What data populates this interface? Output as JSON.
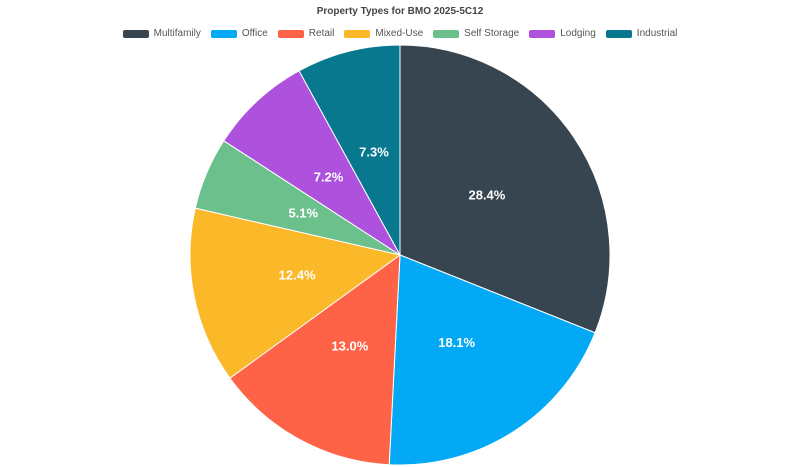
{
  "chart_data": {
    "type": "pie",
    "title": "Property Types for BMO 2025-5C12",
    "legend_position": "top",
    "slices": [
      {
        "label": "Multifamily",
        "value": 28.4,
        "display": "28.4%",
        "color": "#36454f"
      },
      {
        "label": "Office",
        "value": 18.1,
        "display": "18.1%",
        "color": "#03a9f4"
      },
      {
        "label": "Retail",
        "value": 13.0,
        "display": "13.0%",
        "color": "#ff6347"
      },
      {
        "label": "Mixed-Use",
        "value": 12.4,
        "display": "12.4%",
        "color": "#fbb829"
      },
      {
        "label": "Self Storage",
        "value": 5.1,
        "display": "5.1%",
        "color": "#6cc08b"
      },
      {
        "label": "Lodging",
        "value": 7.2,
        "display": "7.2%",
        "color": "#ae52de"
      },
      {
        "label": "Industrial",
        "value": 7.3,
        "display": "7.3%",
        "color": "#08788f"
      }
    ]
  }
}
